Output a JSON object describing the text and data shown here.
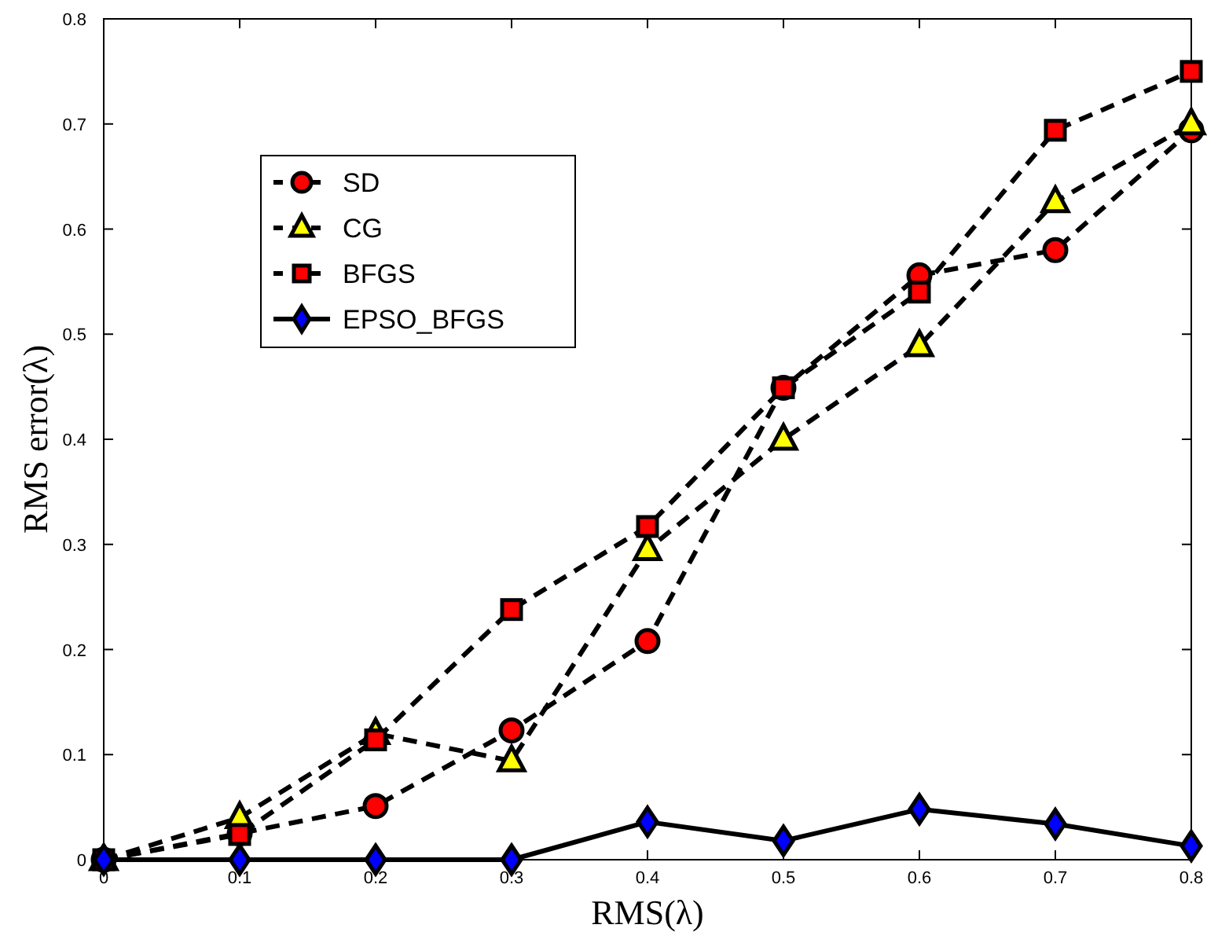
{
  "chart_data": {
    "type": "line",
    "xlabel": "RMS(λ)",
    "ylabel": "RMS error(λ)",
    "x": [
      0,
      0.1,
      0.2,
      0.3,
      0.4,
      0.5,
      0.6,
      0.7,
      0.8
    ],
    "xlim": [
      0,
      0.8
    ],
    "xticks": [
      0,
      0.1,
      0.2,
      0.3,
      0.4,
      0.5,
      0.6,
      0.7,
      0.8
    ],
    "ylim": [
      0,
      0.8
    ],
    "yticks": [
      0,
      0.1,
      0.2,
      0.3,
      0.4,
      0.5,
      0.6,
      0.7,
      0.8
    ],
    "grid": false,
    "legend": "top left",
    "series": [
      {
        "name": "SD",
        "color": "#ff0000",
        "marker": "circle",
        "line_style": "dashed",
        "values": [
          0,
          0.025,
          0.051,
          0.123,
          0.208,
          0.449,
          0.556,
          0.58,
          0.694
        ]
      },
      {
        "name": "CG",
        "color": "#ffff00",
        "marker": "triangle",
        "line_style": "dashed",
        "values": [
          0,
          0.04,
          0.12,
          0.094,
          0.295,
          0.4,
          0.489,
          0.626,
          0.7
        ]
      },
      {
        "name": "BFGS",
        "color": "#ff0000",
        "marker": "square",
        "line_style": "dashed",
        "values": [
          0,
          0.024,
          0.114,
          0.238,
          0.317,
          0.449,
          0.54,
          0.694,
          0.75
        ]
      },
      {
        "name": "EPSO_BFGS",
        "color": "#0000ff",
        "marker": "diamond",
        "line_style": "solid",
        "values": [
          0,
          0,
          0,
          0,
          0.036,
          0.018,
          0.048,
          0.034,
          0.013
        ]
      }
    ]
  }
}
